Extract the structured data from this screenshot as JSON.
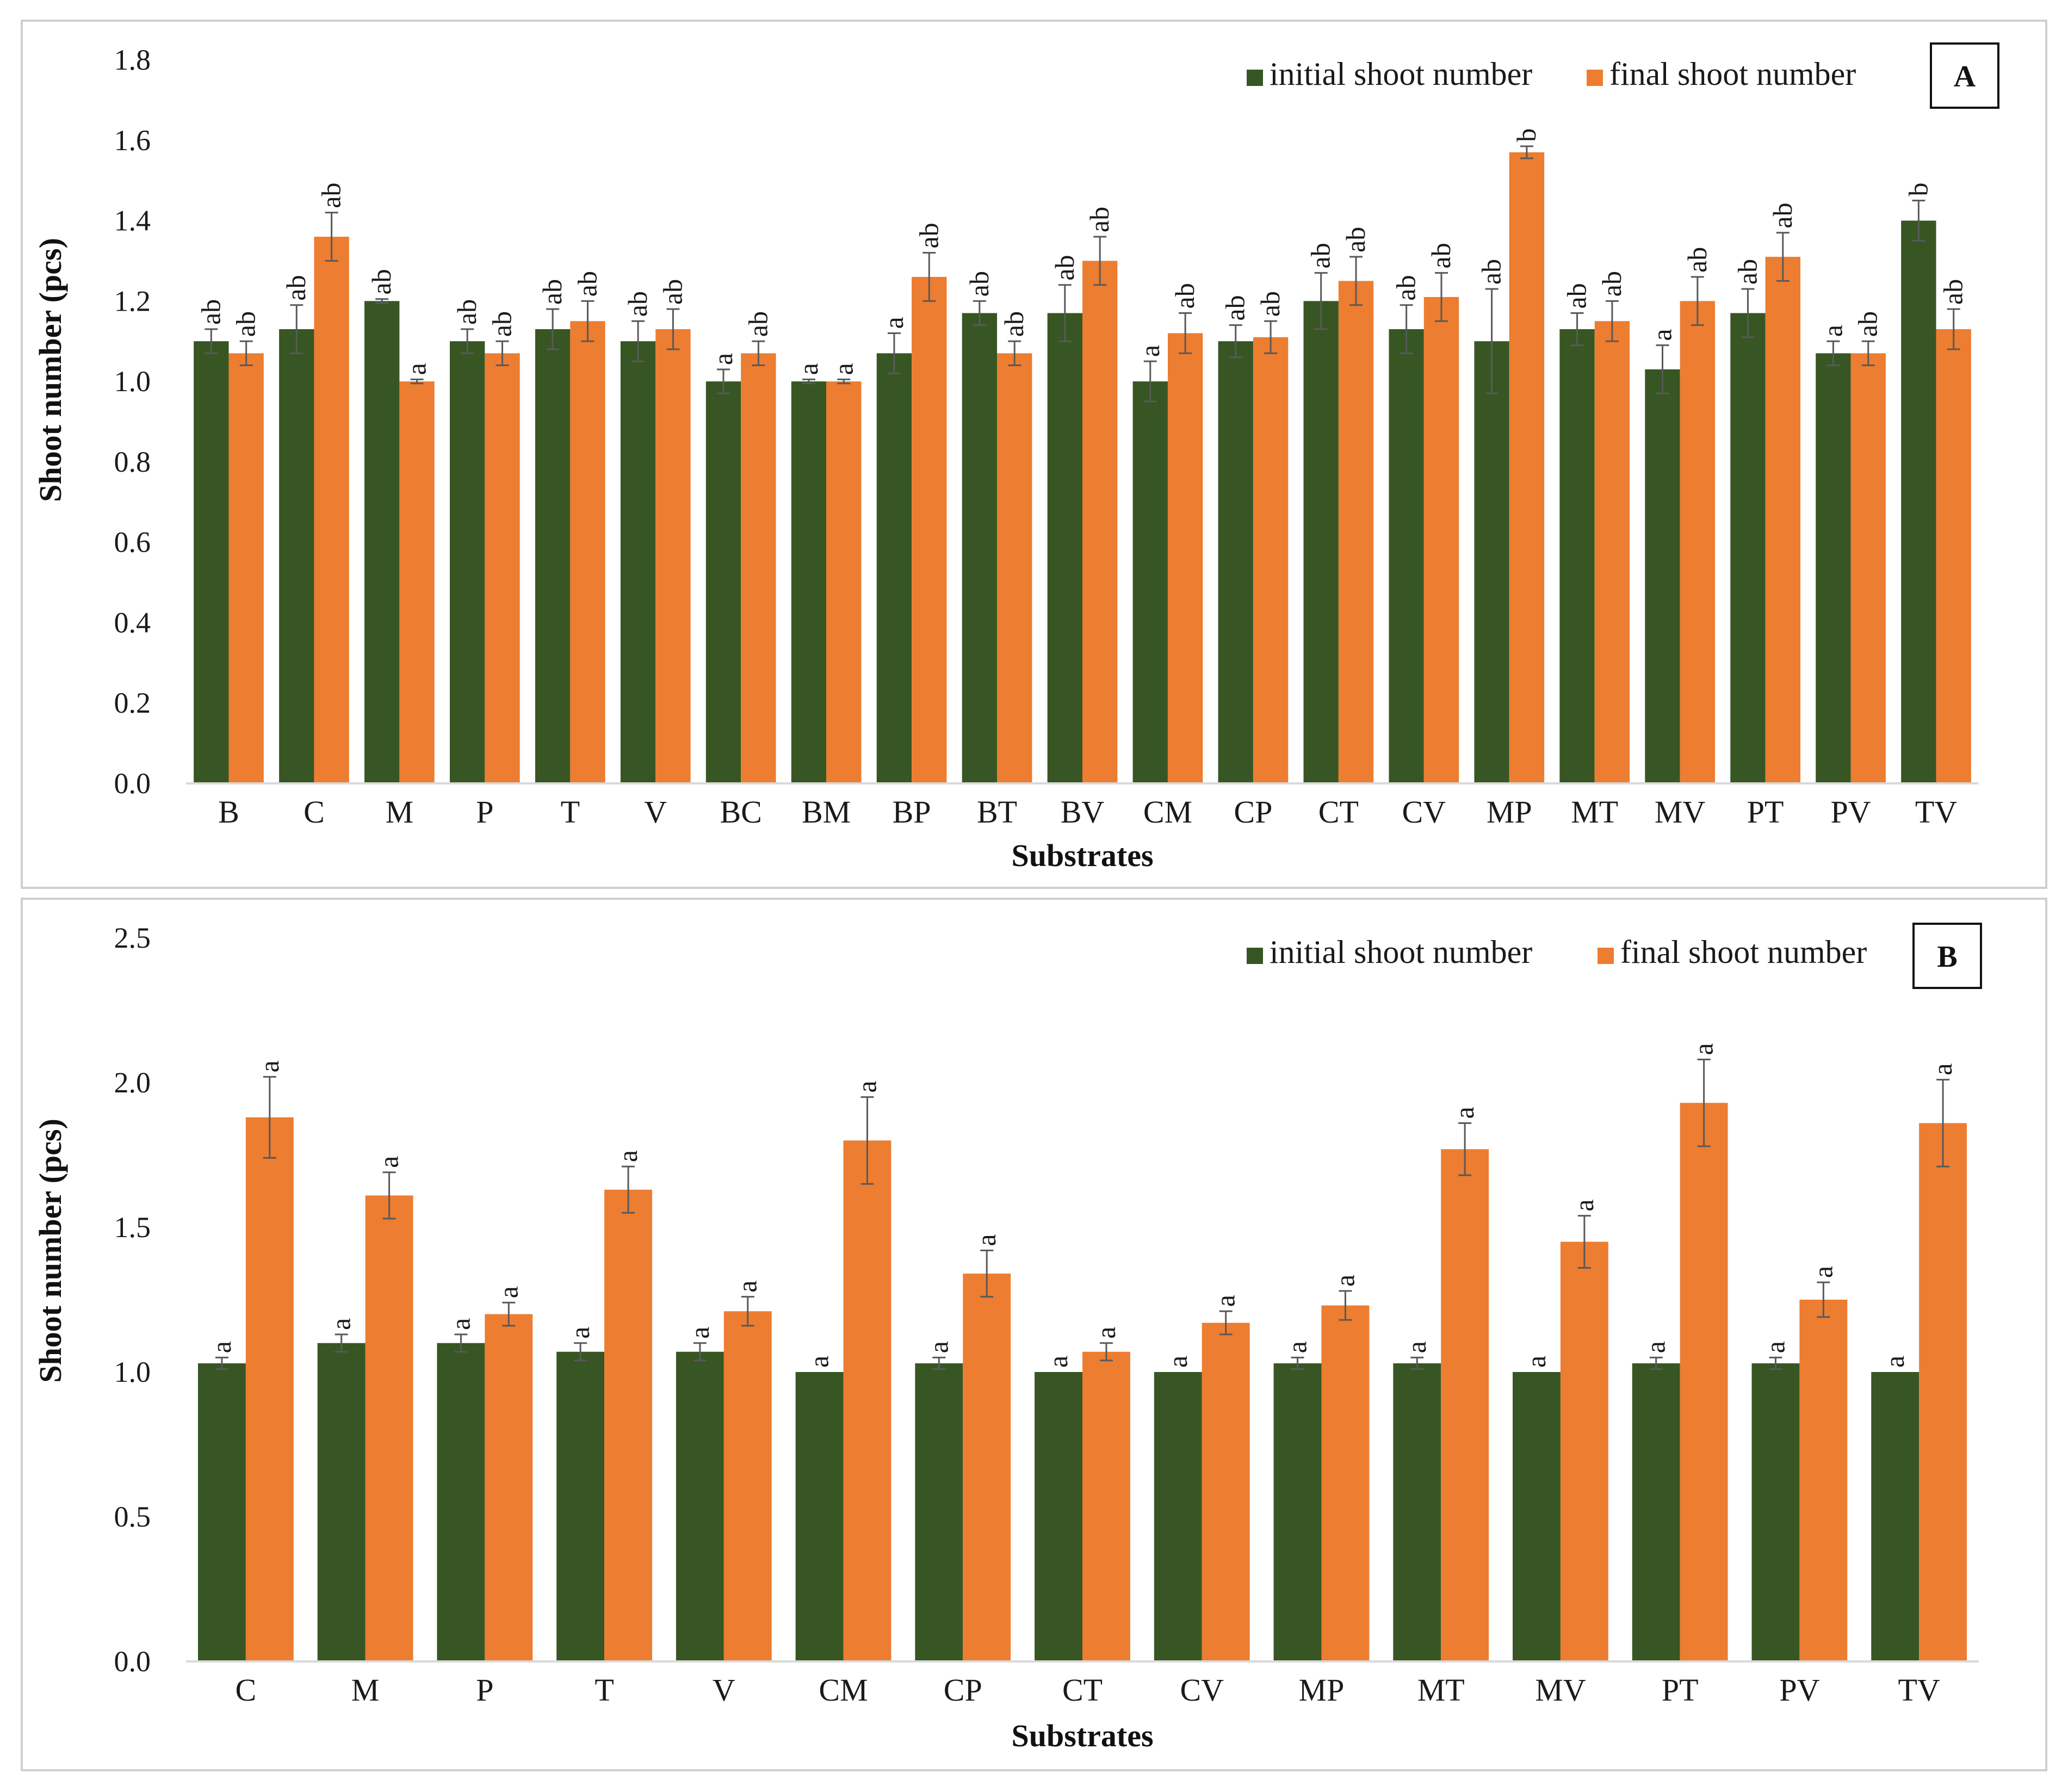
{
  "colors": {
    "initial": "#375623",
    "final": "#ed7d31",
    "axis": "#d9d9d9",
    "error": "#595959"
  },
  "chart_data": [
    {
      "type": "bar",
      "panel_label": "A",
      "xlabel": "Substrates",
      "ylabel": "Shoot number (pcs)",
      "ylim": [
        0,
        1.8
      ],
      "yticks": [
        "0.0",
        "0.2",
        "0.4",
        "0.6",
        "0.8",
        "1.0",
        "1.2",
        "1.4",
        "1.6",
        "1.8"
      ],
      "grid": false,
      "legend_position": "top-right",
      "categories": [
        "B",
        "C",
        "M",
        "P",
        "T",
        "V",
        "BC",
        "BM",
        "BP",
        "BT",
        "BV",
        "CM",
        "CP",
        "CT",
        "CV",
        "MP",
        "MT",
        "MV",
        "PT",
        "PV",
        "TV"
      ],
      "series": [
        {
          "name": "initial shoot number",
          "values": [
            1.1,
            1.13,
            1.2,
            1.1,
            1.13,
            1.1,
            1.0,
            1.0,
            1.07,
            1.17,
            1.17,
            1.0,
            1.1,
            1.2,
            1.13,
            1.1,
            1.13,
            1.03,
            1.17,
            1.07,
            1.4
          ],
          "errors": [
            0.03,
            0.06,
            0.005,
            0.03,
            0.05,
            0.05,
            0.03,
            0.005,
            0.05,
            0.03,
            0.07,
            0.05,
            0.04,
            0.07,
            0.06,
            0.13,
            0.04,
            0.06,
            0.06,
            0.03,
            0.05
          ],
          "letters": [
            "ab",
            "ab",
            "ab",
            "ab",
            "ab",
            "ab",
            "a",
            "a",
            "a",
            "ab",
            "ab",
            "a",
            "ab",
            "ab",
            "ab",
            "ab",
            "ab",
            "a",
            "ab",
            "a",
            "b"
          ]
        },
        {
          "name": "final shoot number",
          "values": [
            1.07,
            1.36,
            1.0,
            1.07,
            1.15,
            1.13,
            1.07,
            1.0,
            1.26,
            1.07,
            1.3,
            1.12,
            1.11,
            1.25,
            1.21,
            1.57,
            1.15,
            1.2,
            1.31,
            1.07,
            1.13
          ],
          "errors": [
            0.03,
            0.06,
            0.005,
            0.03,
            0.05,
            0.05,
            0.03,
            0.005,
            0.06,
            0.03,
            0.06,
            0.05,
            0.04,
            0.06,
            0.06,
            0.015,
            0.05,
            0.06,
            0.06,
            0.03,
            0.05
          ],
          "letters": [
            "ab",
            "ab",
            "a",
            "ab",
            "ab",
            "ab",
            "ab",
            "a",
            "ab",
            "ab",
            "ab",
            "ab",
            "ab",
            "ab",
            "ab",
            "b",
            "ab",
            "ab",
            "ab",
            "ab",
            "ab"
          ]
        }
      ]
    },
    {
      "type": "bar",
      "panel_label": "B",
      "xlabel": "Substrates",
      "ylabel": "Shoot number (pcs)",
      "ylim": [
        0,
        2.5
      ],
      "yticks": [
        "0.0",
        "0.5",
        "1.0",
        "1.5",
        "2.0",
        "2.5"
      ],
      "grid": false,
      "legend_position": "top-right",
      "categories": [
        "C",
        "M",
        "P",
        "T",
        "V",
        "CM",
        "CP",
        "CT",
        "CV",
        "MP",
        "MT",
        "MV",
        "PT",
        "PV",
        "TV"
      ],
      "series": [
        {
          "name": "initial shoot number",
          "values": [
            1.03,
            1.1,
            1.1,
            1.07,
            1.07,
            1.0,
            1.03,
            1.0,
            1.0,
            1.03,
            1.03,
            1.0,
            1.03,
            1.03,
            1.0
          ],
          "errors": [
            0.02,
            0.03,
            0.03,
            0.03,
            0.03,
            0.0,
            0.02,
            0.0,
            0.0,
            0.02,
            0.02,
            0.0,
            0.02,
            0.02,
            0.0
          ],
          "letters": [
            "a",
            "a",
            "a",
            "a",
            "a",
            "a",
            "a",
            "a",
            "a",
            "a",
            "a",
            "a",
            "a",
            "a",
            "a"
          ]
        },
        {
          "name": "final shoot number",
          "values": [
            1.88,
            1.61,
            1.2,
            1.63,
            1.21,
            1.8,
            1.34,
            1.07,
            1.17,
            1.23,
            1.77,
            1.45,
            1.93,
            1.25,
            1.86
          ],
          "errors": [
            0.14,
            0.08,
            0.04,
            0.08,
            0.05,
            0.15,
            0.08,
            0.03,
            0.04,
            0.05,
            0.09,
            0.09,
            0.15,
            0.06,
            0.15
          ],
          "letters": [
            "a",
            "a",
            "a",
            "a",
            "a",
            "a",
            "a",
            "a",
            "a",
            "a",
            "a",
            "a",
            "a",
            "a",
            "a"
          ]
        }
      ]
    }
  ]
}
